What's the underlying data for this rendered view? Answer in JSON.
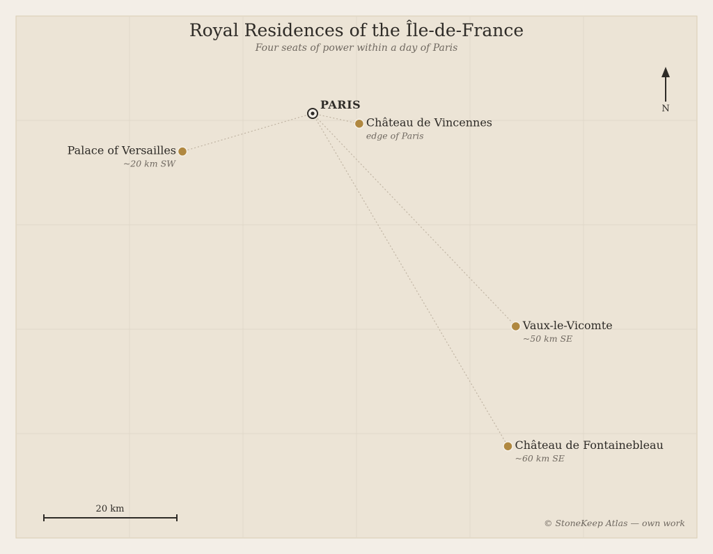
{
  "map": {
    "title": "Royal Residences of the Île-de-France",
    "subtitle": "Four seats of power within a day of Paris",
    "capital": {
      "label": "PARIS",
      "lat": 48.857,
      "lon": 2.352
    },
    "places": [
      {
        "id": "versailles",
        "name": "Palace of Versailles",
        "note": "~20 km SW",
        "lat": 48.805,
        "lon": 2.12,
        "label_side": "left"
      },
      {
        "id": "vincennes",
        "name": "Château de Vincennes",
        "note": "edge of Paris",
        "lat": 48.843,
        "lon": 2.435,
        "label_side": "right"
      },
      {
        "id": "vaux",
        "name": "Vaux-le-Vicomte",
        "note": "~50 km SE",
        "lat": 48.566,
        "lon": 2.714,
        "label_side": "right"
      },
      {
        "id": "fontainebleau",
        "name": "Château de Fontainebleau",
        "note": "~60 km SE",
        "lat": 48.402,
        "lon": 2.7,
        "label_side": "right"
      }
    ],
    "compass": {
      "label": "N"
    },
    "scale": {
      "label": "20 km",
      "km": 20
    },
    "credit": "© StoneKeep Atlas — own work",
    "colors": {
      "background": "#f3eee7",
      "map_fill": "#ece4d6",
      "map_border": "#d9ccb3",
      "marker": "#b08840",
      "capital_marker": "#2e2b27",
      "connector": "#bfb3a2",
      "text": "#2e2b27",
      "muted_text": "#6f6860"
    }
  }
}
